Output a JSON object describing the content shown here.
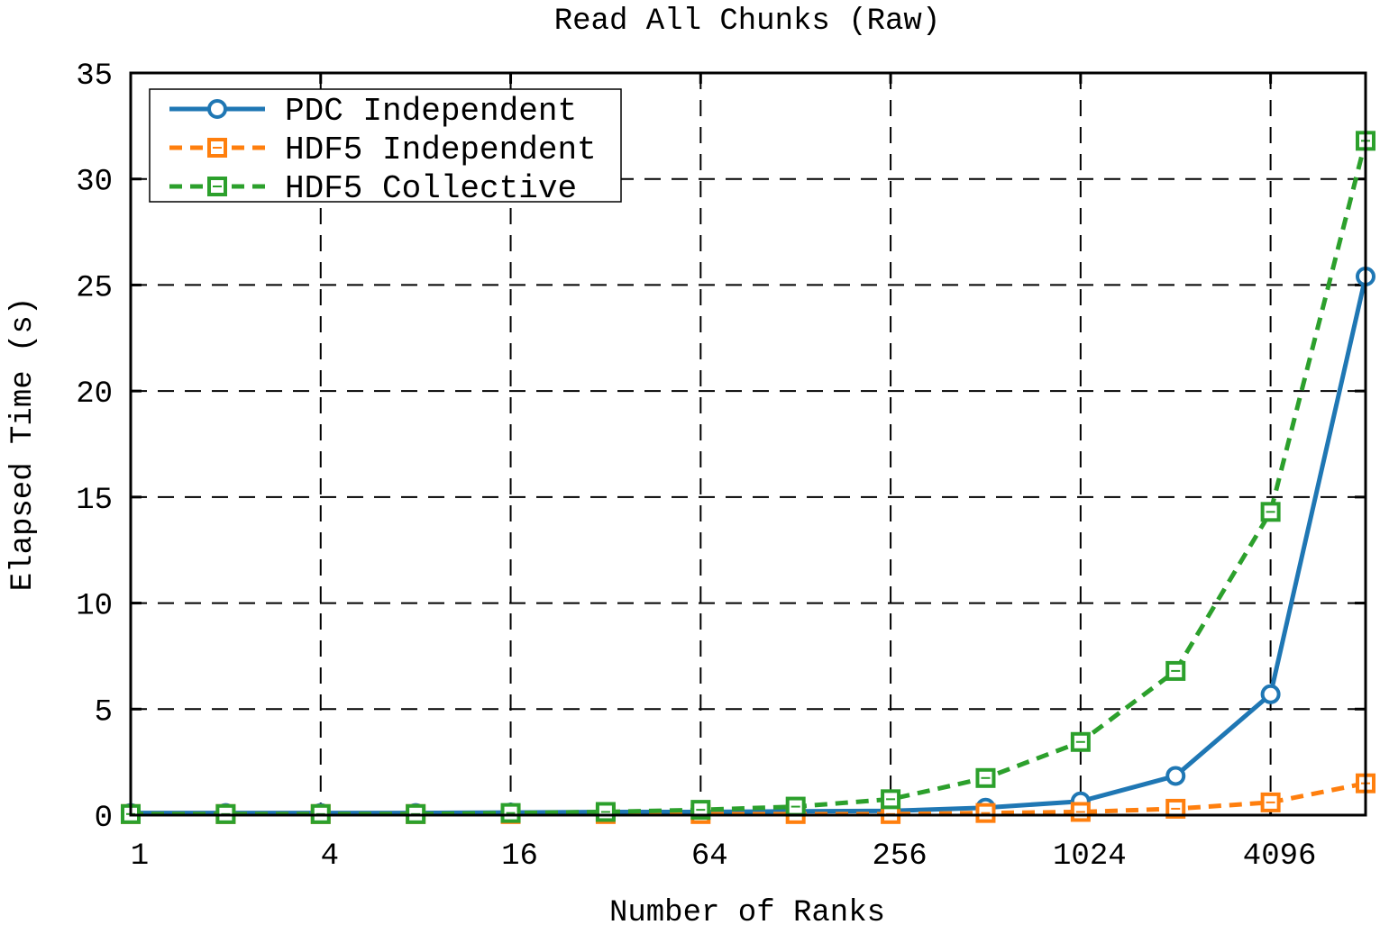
{
  "chart_data": {
    "type": "line",
    "title": "Read All Chunks (Raw)",
    "xlabel": "Number of Ranks",
    "ylabel": "Elapsed Time (s)",
    "x_scale": "log2",
    "x": [
      1,
      2,
      4,
      8,
      16,
      32,
      64,
      128,
      256,
      512,
      1024,
      2048,
      4096,
      8192
    ],
    "xticks": [
      1,
      4,
      16,
      64,
      256,
      1024,
      4096
    ],
    "xtick_labels": [
      "1",
      "4",
      "16",
      "64",
      "256",
      "1024",
      "4096"
    ],
    "xlim": [
      1,
      8192
    ],
    "ylim": [
      0,
      35
    ],
    "yticks": [
      0,
      5,
      10,
      15,
      20,
      25,
      30,
      35
    ],
    "ytick_labels": [
      "0",
      "5",
      "10",
      "15",
      "20",
      "25",
      "30",
      "35"
    ],
    "grid": true,
    "legend_position": "top-left",
    "series": [
      {
        "name": "PDC Independent",
        "color": "#1f77b4",
        "marker": "circle",
        "line_style": "solid",
        "values": [
          0.1,
          0.1,
          0.1,
          0.1,
          0.12,
          0.15,
          0.15,
          0.18,
          0.2,
          0.35,
          0.65,
          1.85,
          5.7,
          25.4
        ]
      },
      {
        "name": "HDF5 Independent",
        "color": "#ff7f0e",
        "marker": "square",
        "line_style": "dashed",
        "values": [
          0.05,
          0.05,
          0.05,
          0.05,
          0.05,
          0.05,
          0.05,
          0.05,
          0.05,
          0.1,
          0.15,
          0.3,
          0.6,
          1.5
        ]
      },
      {
        "name": "HDF5 Collective",
        "color": "#2ca02c",
        "marker": "square",
        "line_style": "dashed",
        "values": [
          0.05,
          0.05,
          0.05,
          0.05,
          0.1,
          0.15,
          0.25,
          0.4,
          0.75,
          1.75,
          3.45,
          6.8,
          14.3,
          31.8
        ]
      }
    ]
  }
}
